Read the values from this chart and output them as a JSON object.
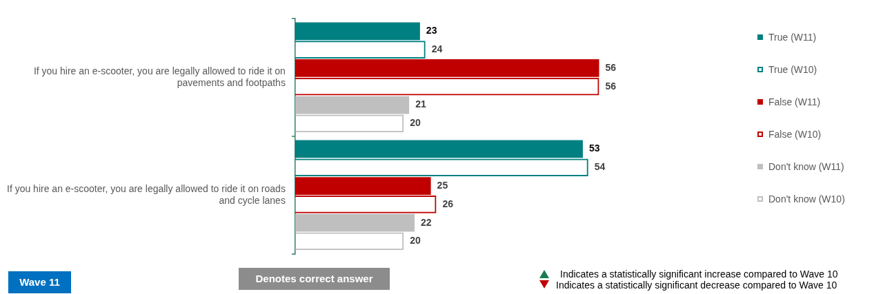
{
  "chart_data": {
    "type": "bar",
    "orientation": "horizontal",
    "categories": [
      "If you hire an e-scooter, you are legally allowed to ride it on pavements and footpaths",
      "If you hire an e-scooter, you are legally allowed to ride it on roads and cycle lanes"
    ],
    "series": [
      {
        "name": "True (W11)",
        "color": "#008080",
        "values": [
          23,
          53
        ]
      },
      {
        "name": "True (W10)",
        "color": "#008080",
        "values": [
          24,
          54
        ]
      },
      {
        "name": "False (W11)",
        "color": "#c00000",
        "values": [
          56,
          25
        ]
      },
      {
        "name": "False (W10)",
        "color": "#c00000",
        "values": [
          56,
          26
        ]
      },
      {
        "name": "Don't know (W11)",
        "color": "#bfbfbf",
        "values": [
          21,
          22
        ]
      },
      {
        "name": "Don't know (W10)",
        "color": "#bfbfbf",
        "values": [
          20,
          20
        ]
      }
    ],
    "tick_labels": "y",
    "legend": "right",
    "data_labels": true,
    "annotations": [
      "Wave 11",
      "Denotes correct answer",
      "Indicates a statistically significant increase compared to Wave 10",
      "Indicates a statistically significant decrease compared to Wave 10"
    ]
  }
}
